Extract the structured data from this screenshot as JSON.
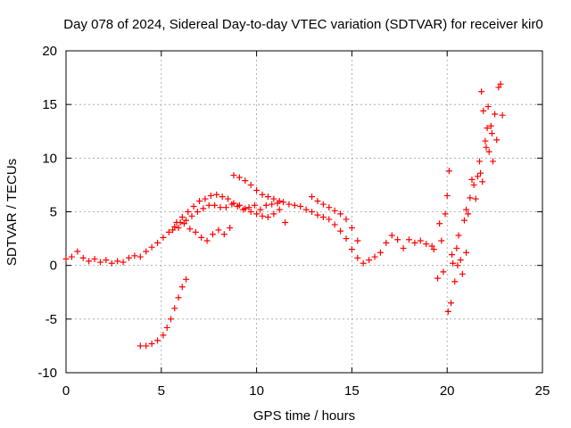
{
  "chart_data": {
    "type": "scatter",
    "title": "Day 078 of 2024, Sidereal Day-to-day VTEC variation (SDTVAR) for receiver kir0",
    "xlabel": "GPS time / hours",
    "ylabel": "SDTVAR / TECUs",
    "xlim": [
      0,
      25
    ],
    "ylim": [
      -10,
      20
    ],
    "xticks": [
      0,
      5,
      10,
      15,
      20,
      25
    ],
    "yticks": [
      -10,
      -5,
      0,
      5,
      10,
      15,
      20
    ],
    "xtick_labels": [
      "0",
      "5",
      "10",
      "15",
      "20",
      "25"
    ],
    "ytick_labels": [
      "-10",
      "-5",
      "0",
      "5",
      "10",
      "15",
      "20"
    ],
    "grid": true,
    "marker": "+",
    "colors": {
      "series": "#ff0000",
      "grid": "#a0a0a0",
      "frame": "#000000"
    },
    "series": [
      {
        "name": "main-trace",
        "x": [
          0,
          0.3,
          0.6,
          0.9,
          1.2,
          1.5,
          1.8,
          2.1,
          2.4,
          2.7,
          3.0,
          3.3,
          3.6,
          3.9,
          4.2,
          4.5,
          4.8,
          5.1,
          5.4,
          5.7,
          6.0,
          6.3,
          6.6,
          6.9,
          7.2,
          7.5,
          7.8,
          8.1,
          8.4,
          8.7,
          9.0,
          9.3,
          9.6,
          9.9,
          10.2,
          10.5,
          10.8,
          11.1,
          11.4,
          11.7,
          12.0,
          12.3,
          12.6,
          12.9,
          13.2,
          13.5,
          13.8,
          14.1,
          14.4,
          14.7,
          15.0,
          15.3,
          15.6,
          15.9,
          16.2,
          16.5,
          16.8,
          17.1,
          17.4,
          17.7,
          18.0,
          18.3,
          18.6,
          18.9,
          19.2
        ],
        "y": [
          0.6,
          0.8,
          1.3,
          0.7,
          0.4,
          0.6,
          0.3,
          0.5,
          0.2,
          0.4,
          0.3,
          0.7,
          0.9,
          0.8,
          1.3,
          1.7,
          2.1,
          2.6,
          3.1,
          3.6,
          4.0,
          4.2,
          4.6,
          5.0,
          5.3,
          5.6,
          5.6,
          5.4,
          5.4,
          5.7,
          5.5,
          5.2,
          5.4,
          5.6,
          5.2,
          5.6,
          5.7,
          5.8,
          5.9,
          5.7,
          5.6,
          5.5,
          5.2,
          5.0,
          4.7,
          4.5,
          4.3,
          3.8,
          3.2,
          2.5,
          1.5,
          0.7,
          0.2,
          0.5,
          0.8,
          1.2,
          2.1,
          2.8,
          2.4,
          1.6,
          2.4,
          2.1,
          2.3,
          2.0,
          1.8
        ]
      },
      {
        "name": "upper-branch",
        "x": [
          5.8,
          6.1,
          6.4,
          6.7,
          7.0,
          7.3,
          7.6,
          7.9,
          8.2,
          8.5,
          8.8,
          9.1,
          9.4,
          9.7,
          10.0,
          10.3,
          10.6,
          10.9,
          11.2,
          11.5
        ],
        "y": [
          4.0,
          4.5,
          5.0,
          5.5,
          6.0,
          6.2,
          6.5,
          6.6,
          6.4,
          6.2,
          5.8,
          5.6,
          5.3,
          5.0,
          4.8,
          4.6,
          4.5,
          4.8,
          5.2,
          4.0
        ]
      },
      {
        "name": "lower-loop",
        "x": [
          5.6,
          5.9,
          6.2,
          6.5,
          6.8,
          7.1,
          7.4,
          7.7,
          8.0,
          8.3,
          8.6
        ],
        "y": [
          3.3,
          3.5,
          3.9,
          3.4,
          3.1,
          2.6,
          2.3,
          2.9,
          3.3,
          2.9,
          3.5
        ]
      },
      {
        "name": "arc-high",
        "x": [
          8.8,
          9.1,
          9.4,
          9.7,
          10.0,
          10.3,
          10.6,
          10.9,
          11.2
        ],
        "y": [
          8.4,
          8.2,
          7.9,
          7.5,
          7.0,
          6.6,
          6.4,
          6.2,
          6.0
        ]
      },
      {
        "name": "ridge-13-15",
        "x": [
          12.9,
          13.2,
          13.5,
          13.8,
          14.1,
          14.4,
          14.7,
          15.0,
          15.3
        ],
        "y": [
          6.4,
          6.0,
          5.7,
          5.4,
          5.1,
          4.8,
          4.3,
          3.5,
          2.3
        ]
      },
      {
        "name": "negative-branch",
        "x": [
          3.9,
          4.2,
          4.5,
          4.8,
          5.1,
          5.3,
          5.5,
          5.7,
          5.9,
          6.1,
          6.3
        ],
        "y": [
          -7.5,
          -7.5,
          -7.3,
          -7.0,
          -6.5,
          -5.8,
          -5.0,
          -4.0,
          -3.0,
          -2.0,
          -1.3
        ]
      },
      {
        "name": "scatter-19-21",
        "x": [
          19.3,
          19.5,
          19.7,
          19.9,
          20.0,
          20.1,
          20.2,
          20.3,
          20.4,
          20.5,
          20.6,
          20.7,
          20.8,
          20.9,
          21.0,
          19.6,
          19.8,
          20.05,
          20.25,
          20.55
        ],
        "y": [
          1.5,
          -1.2,
          2.3,
          4.8,
          6.5,
          8.8,
          -3.5,
          0.2,
          -1.5,
          1.6,
          2.8,
          0.5,
          -0.8,
          4.2,
          1.2,
          3.9,
          -0.6,
          -4.3,
          1.0,
          0.0
        ]
      },
      {
        "name": "rise-21-23",
        "x": [
          21.0,
          21.1,
          21.2,
          21.3,
          21.4,
          21.5,
          21.6,
          21.7,
          21.8,
          21.9,
          22.0,
          22.1,
          22.2,
          22.3,
          22.4,
          22.5,
          22.6,
          22.7,
          22.8,
          22.9,
          21.75,
          21.85,
          22.05,
          22.15,
          22.35
        ],
        "y": [
          5.2,
          4.8,
          6.3,
          8.0,
          7.5,
          6.2,
          8.3,
          9.7,
          16.2,
          14.4,
          11.6,
          12.8,
          10.6,
          13.0,
          9.7,
          14.1,
          11.7,
          16.6,
          16.9,
          14.0,
          8.6,
          7.8,
          11.0,
          14.8,
          12.3
        ]
      }
    ]
  }
}
